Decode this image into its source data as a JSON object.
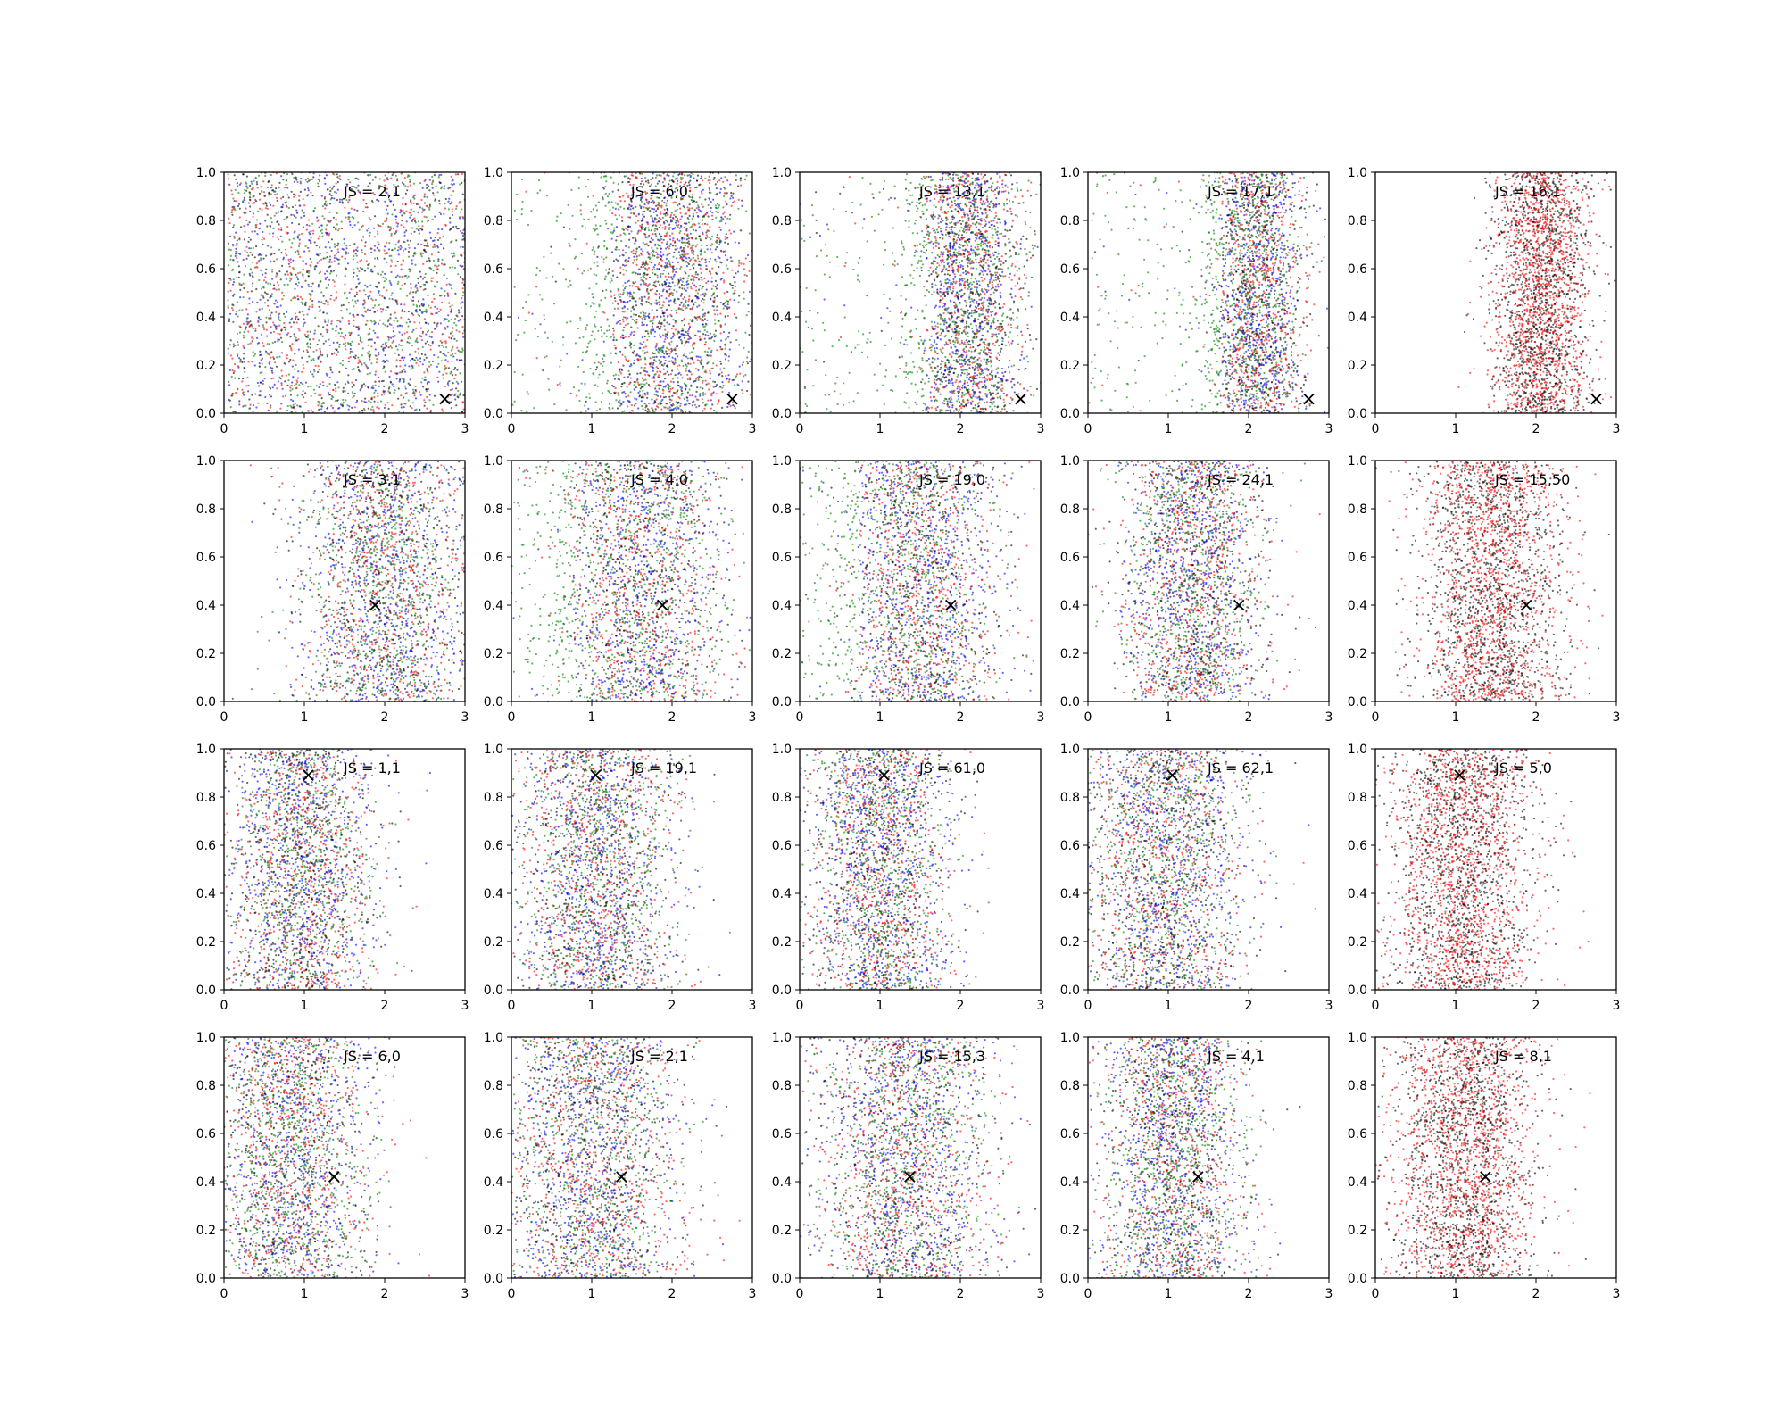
{
  "chart_data": {
    "type": "scatter",
    "grid": false,
    "xlim": [
      0,
      3
    ],
    "ylim": [
      0,
      1
    ],
    "x_ticks": [
      0,
      1,
      2,
      3
    ],
    "y_ticks": [
      "0.0",
      "0.2",
      "0.4",
      "0.6",
      "0.8",
      "1.0"
    ],
    "point_colors": [
      "#0000ff",
      "#ff0000",
      "#008000",
      "#000000"
    ],
    "marker": "×",
    "rows": [
      {
        "marker_point": [
          2.75,
          0.06
        ],
        "panels": [
          {
            "label": "JS = 2,1",
            "colors": [
              "#0000ff",
              "#ff0000",
              "#008000",
              "#000000"
            ],
            "distribution": {
              "type": "uniform",
              "min": 0.05,
              "max": 3.0
            }
          },
          {
            "label": "JS = 6,0",
            "colors": [
              "#0000ff",
              "#ff0000",
              "#008000",
              "#000000"
            ],
            "distribution": {
              "type": "normal",
              "mean": 2.0,
              "sd": 0.5,
              "tail_color": "#008000"
            }
          },
          {
            "label": "JS = 13,1",
            "colors": [
              "#0000ff",
              "#ff0000",
              "#008000",
              "#000000"
            ],
            "distribution": {
              "type": "normal",
              "mean": 2.1,
              "sd": 0.35,
              "tail_color": "#008000"
            }
          },
          {
            "label": "JS = 17,1",
            "colors": [
              "#0000ff",
              "#ff0000",
              "#008000",
              "#000000"
            ],
            "distribution": {
              "type": "normal",
              "mean": 2.1,
              "sd": 0.3,
              "tail_color": "#008000"
            }
          },
          {
            "label": "JS = 16,1",
            "colors": [
              "#ff0000",
              "#000000"
            ],
            "distribution": {
              "type": "normal",
              "mean": 2.05,
              "sd": 0.3
            }
          }
        ]
      },
      {
        "marker_point": [
          1.88,
          0.4
        ],
        "panels": [
          {
            "label": "JS = 3,1",
            "colors": [
              "#0000ff",
              "#ff0000",
              "#008000",
              "#000000"
            ],
            "distribution": {
              "type": "normal",
              "mean": 2.0,
              "sd": 0.55
            }
          },
          {
            "label": "JS = 4,0",
            "colors": [
              "#0000ff",
              "#ff0000",
              "#008000",
              "#000000"
            ],
            "distribution": {
              "type": "normal",
              "mean": 1.6,
              "sd": 0.55,
              "tail_color": "#008000"
            }
          },
          {
            "label": "JS = 19,0",
            "colors": [
              "#0000ff",
              "#ff0000",
              "#008000",
              "#000000"
            ],
            "distribution": {
              "type": "normal",
              "mean": 1.5,
              "sd": 0.5,
              "tail_color": "#008000"
            }
          },
          {
            "label": "JS = 24,1",
            "colors": [
              "#0000ff",
              "#ff0000",
              "#008000",
              "#000000"
            ],
            "distribution": {
              "type": "normal",
              "mean": 1.3,
              "sd": 0.45
            }
          },
          {
            "label": "JS = 15,50",
            "colors": [
              "#ff0000",
              "#000000"
            ],
            "distribution": {
              "type": "normal",
              "mean": 1.45,
              "sd": 0.45
            }
          }
        ]
      },
      {
        "marker_point": [
          1.05,
          0.89
        ],
        "panels": [
          {
            "label": "JS = 1,1",
            "colors": [
              "#0000ff",
              "#ff0000",
              "#008000",
              "#000000"
            ],
            "distribution": {
              "type": "normal",
              "mean": 0.95,
              "sd": 0.45
            }
          },
          {
            "label": "JS = 19,1",
            "colors": [
              "#0000ff",
              "#ff0000",
              "#008000",
              "#000000"
            ],
            "distribution": {
              "type": "normal",
              "mean": 1.05,
              "sd": 0.5
            }
          },
          {
            "label": "JS = 61,0",
            "colors": [
              "#0000ff",
              "#ff0000",
              "#008000",
              "#000000"
            ],
            "distribution": {
              "type": "normal",
              "mean": 1.0,
              "sd": 0.45
            }
          },
          {
            "label": "JS = 62,1",
            "colors": [
              "#0000ff",
              "#ff0000",
              "#008000",
              "#000000"
            ],
            "distribution": {
              "type": "normal",
              "mean": 0.95,
              "sd": 0.5
            }
          },
          {
            "label": "JS = 5,0",
            "colors": [
              "#ff0000",
              "#000000"
            ],
            "distribution": {
              "type": "normal",
              "mean": 1.1,
              "sd": 0.45
            }
          }
        ]
      },
      {
        "marker_point": [
          1.37,
          0.42
        ],
        "panels": [
          {
            "label": "JS = 6,0",
            "colors": [
              "#0000ff",
              "#ff0000",
              "#008000",
              "#000000"
            ],
            "distribution": {
              "type": "normal",
              "mean": 0.85,
              "sd": 0.5
            }
          },
          {
            "label": "JS = 2,1",
            "colors": [
              "#0000ff",
              "#ff0000",
              "#008000",
              "#000000"
            ],
            "distribution": {
              "type": "normal",
              "mean": 1.0,
              "sd": 0.55
            }
          },
          {
            "label": "JS = 15,3",
            "colors": [
              "#0000ff",
              "#ff0000",
              "#008000",
              "#000000"
            ],
            "distribution": {
              "type": "normal",
              "mean": 1.3,
              "sd": 0.55
            }
          },
          {
            "label": "JS = 4,1",
            "colors": [
              "#0000ff",
              "#ff0000",
              "#008000",
              "#000000"
            ],
            "distribution": {
              "type": "normal",
              "mean": 1.05,
              "sd": 0.45
            }
          },
          {
            "label": "JS = 8,1",
            "colors": [
              "#ff0000",
              "#000000"
            ],
            "distribution": {
              "type": "normal",
              "mean": 1.1,
              "sd": 0.45
            }
          }
        ]
      }
    ]
  }
}
